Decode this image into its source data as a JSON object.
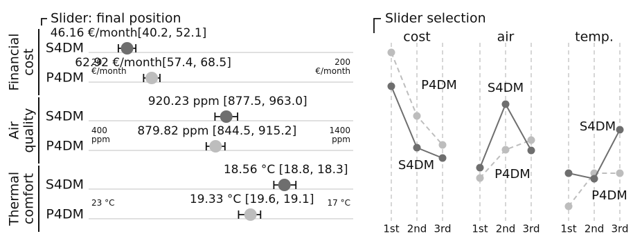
{
  "chart_data": {
    "type": "scatter",
    "colors": {
      "s4dm": "#6e6e6e",
      "p4dm": "#bdbdbd",
      "rule": "#d6d6d6",
      "ink": "#111111"
    },
    "left": {
      "heading": "Slider: final position",
      "sections": [
        {
          "name_lines": [
            "Financial",
            "cost"
          ],
          "scale_min": 20,
          "scale_max": 200,
          "min_label": [
            "20",
            "€/month"
          ],
          "max_label": [
            "200",
            "€/month"
          ],
          "rows": [
            {
              "label": "S4DM",
              "value": 46.16,
              "ci": [
                40.2,
                52.1
              ],
              "value_text": "46.16 €/month[40.2, 52.1]"
            },
            {
              "label": "P4DM",
              "value": 62.92,
              "ci": [
                57.4,
                68.5
              ],
              "value_text": "62.92 €/month[57.4, 68.5]"
            }
          ]
        },
        {
          "name_lines": [
            "Air",
            "quality"
          ],
          "scale_min": 400,
          "scale_max": 1400,
          "min_label": [
            "400",
            "ppm"
          ],
          "max_label": [
            "1400",
            "ppm"
          ],
          "rows": [
            {
              "label": "S4DM",
              "value": 920.23,
              "ci": [
                877.5,
                963.0
              ],
              "value_text": "920.23 ppm [877.5, 963.0]"
            },
            {
              "label": "P4DM",
              "value": 879.82,
              "ci": [
                844.5,
                915.2
              ],
              "value_text": "879.82 ppm [844.5, 915.2]"
            }
          ]
        },
        {
          "name_lines": [
            "Thermal",
            "comfort"
          ],
          "scale_min": 23,
          "scale_max": 17,
          "min_label": [
            "23 °C"
          ],
          "max_label": [
            "17 °C"
          ],
          "rows": [
            {
              "label": "S4DM",
              "value": 18.56,
              "ci": [
                18.8,
                18.3
              ],
              "value_text": "18.56 °C [18.8, 18.3]"
            },
            {
              "label": "P4DM",
              "value": 19.33,
              "ci": [
                19.6,
                19.1
              ],
              "value_text": "19.33 °C [19.6, 19.1]"
            }
          ]
        }
      ]
    },
    "right": {
      "heading": "Slider selection",
      "panels": [
        {
          "title": "cost",
          "x": [
            "1st",
            "2nd",
            "3rd"
          ],
          "series": [
            {
              "name": "S4DM",
              "values": [
                3,
                2,
                1
              ]
            },
            {
              "name": "P4DM",
              "values": [
                3,
                2,
                1
              ]
            }
          ]
        },
        {
          "title": "air",
          "x": [
            "1st",
            "2nd",
            "3rd"
          ],
          "series": [
            {
              "name": "S4DM",
              "values": [
                1,
                3,
                2
              ]
            },
            {
              "name": "P4DM",
              "values": [
                1,
                2,
                3
              ]
            }
          ]
        },
        {
          "title": "temp.",
          "x": [
            "1st",
            "2nd",
            "3rd"
          ],
          "series": [
            {
              "name": "S4DM",
              "values": [
                2,
                1,
                3
              ]
            },
            {
              "name": "P4DM",
              "values": [
                1,
                2,
                2
              ]
            }
          ]
        }
      ]
    }
  }
}
